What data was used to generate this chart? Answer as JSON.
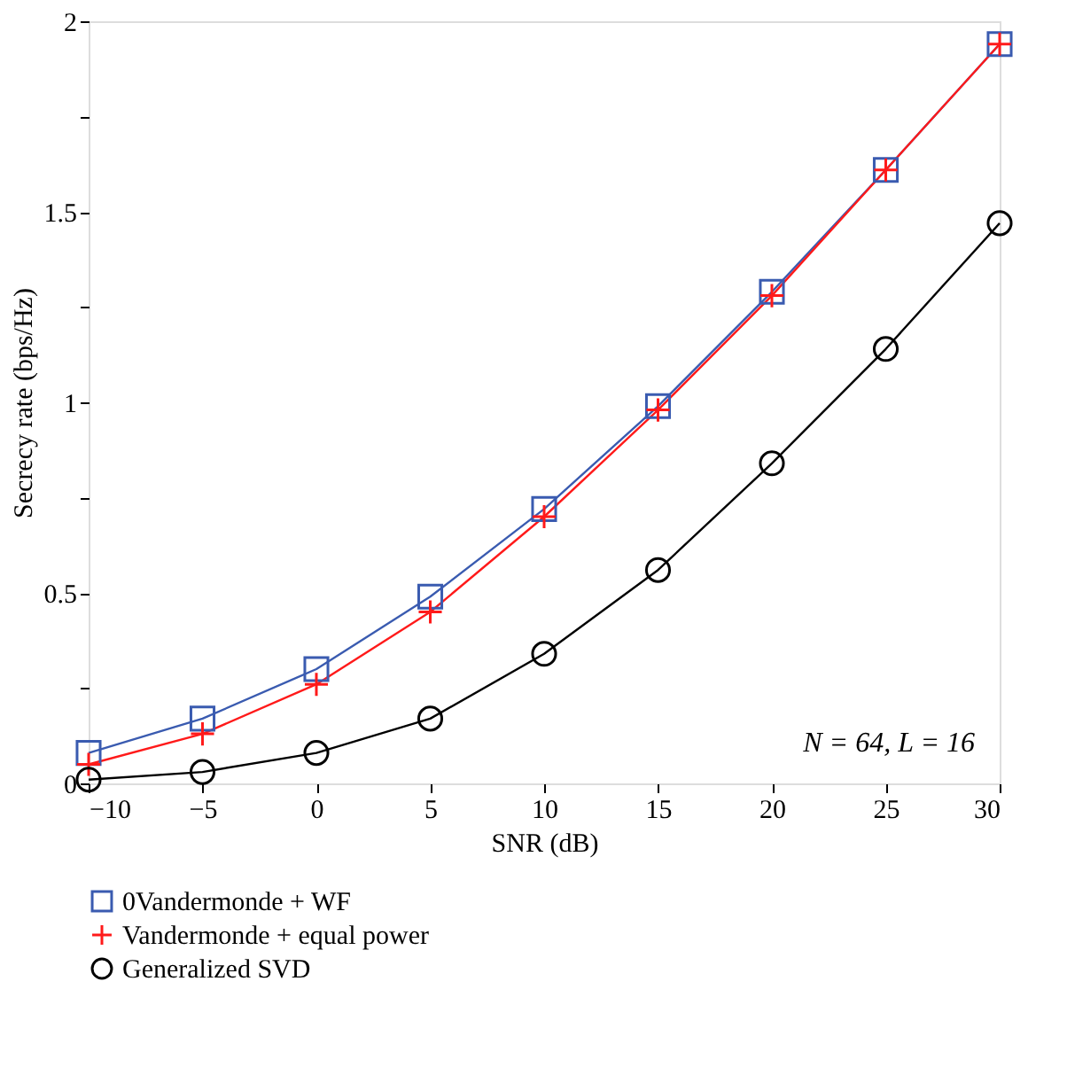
{
  "chart_data": {
    "type": "line",
    "xlabel": "SNR (dB)",
    "ylabel": "Secrecy rate (bps/Hz)",
    "x": [
      -10,
      -5,
      0,
      5,
      10,
      15,
      20,
      25,
      30
    ],
    "series": [
      {
        "name": "0Vandermonde + WF",
        "color": "#3a5bb0",
        "marker": "square",
        "values": [
          0.08,
          0.17,
          0.3,
          0.49,
          0.72,
          0.99,
          1.29,
          1.61,
          1.94
        ]
      },
      {
        "name": "Vandermonde + equal power",
        "color": "#ff1a1a",
        "marker": "cross",
        "values": [
          0.05,
          0.13,
          0.26,
          0.45,
          0.7,
          0.98,
          1.28,
          1.61,
          1.94
        ]
      },
      {
        "name": "Generalized SVD",
        "color": "#000000",
        "marker": "circle",
        "values": [
          0.01,
          0.03,
          0.08,
          0.17,
          0.34,
          0.56,
          0.84,
          1.14,
          1.47
        ]
      }
    ],
    "xlim": [
      -10,
      30
    ],
    "xticks": [
      {
        "value": -10,
        "label": "−10"
      },
      {
        "value": -5,
        "label": "−5"
      },
      0,
      5,
      10,
      15,
      20,
      25,
      30
    ],
    "ylim": [
      0,
      2
    ],
    "yticks": [
      0,
      {
        "value": 0.25,
        "label": null
      },
      0.5,
      {
        "value": 0.75,
        "label": null
      },
      1,
      {
        "value": 1.25,
        "label": null
      },
      1.5,
      {
        "value": 1.75,
        "label": null
      },
      2
    ],
    "annotations": [
      "N = 64, L = 16"
    ],
    "legend": "bottom",
    "grid": false,
    "line_style": "solid"
  }
}
